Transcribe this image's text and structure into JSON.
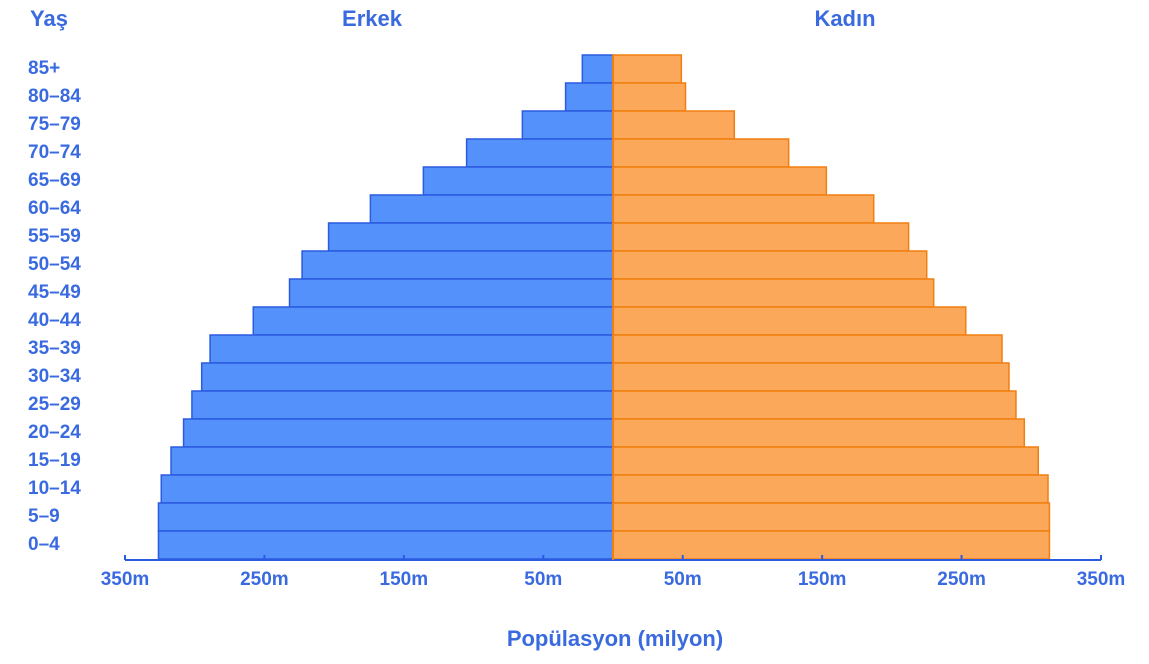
{
  "chart_data": {
    "type": "pyramid",
    "y_label": "Yaş",
    "x_label": "Popülasyon (milyon)",
    "categories": [
      "85+",
      "80–84",
      "75–79",
      "70–74",
      "65–69",
      "60–64",
      "55–59",
      "50–54",
      "45–49",
      "40–44",
      "35–39",
      "30–34",
      "25–29",
      "20–24",
      "15–19",
      "10–14",
      "5–9",
      "0–4"
    ],
    "series": [
      {
        "name": "Erkek",
        "side": "left",
        "color": "#5591fa",
        "edge": "#2a5be0",
        "values": [
          22,
          34,
          65,
          105,
          136,
          174,
          204,
          223,
          232,
          258,
          289,
          295,
          302,
          308,
          317,
          324,
          326,
          326
        ]
      },
      {
        "name": "Kadın",
        "side": "right",
        "color": "#fca85a",
        "edge": "#f07f10",
        "values": [
          49,
          52,
          87,
          126,
          153,
          187,
          212,
          225,
          230,
          253,
          279,
          284,
          289,
          295,
          305,
          312,
          313,
          313
        ]
      }
    ],
    "xlim": [
      0,
      350
    ],
    "xticks_left": [
      {
        "value": 350,
        "label": "350m"
      },
      {
        "value": 250,
        "label": "250m"
      },
      {
        "value": 150,
        "label": "150m"
      },
      {
        "value": 50,
        "label": "50m"
      }
    ],
    "xticks_right": [
      {
        "value": 50,
        "label": "50m"
      },
      {
        "value": 150,
        "label": "150m"
      },
      {
        "value": 250,
        "label": "250m"
      },
      {
        "value": 350,
        "label": "350m"
      }
    ]
  }
}
